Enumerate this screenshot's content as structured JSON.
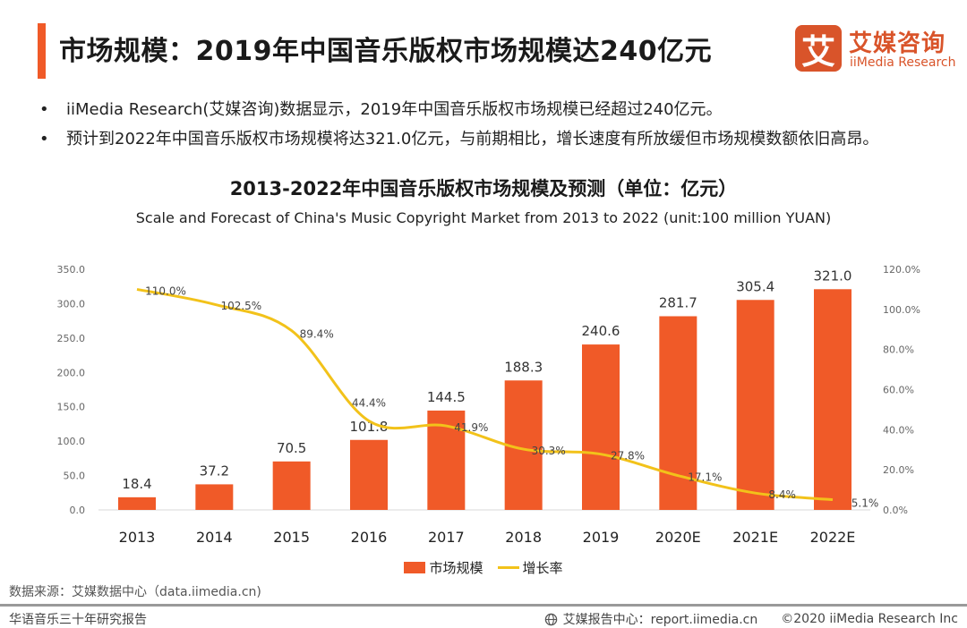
{
  "header": {
    "title": "市场规模：2019年中国音乐版权市场规模达240亿元",
    "logo": {
      "icon_glyph": "艾",
      "name_cn": "艾媒咨询",
      "name_en": "iiMedia Research"
    }
  },
  "bullets": [
    "iiMedia Research(艾媒咨询)数据显示，2019年中国音乐版权市场规模已经超过240亿元。",
    "预计到2022年中国音乐版权市场规模将达321.0亿元，与前期相比，增长速度有所放缓但市场规模数额依旧高昂。"
  ],
  "colors": {
    "accent": "#f05a28",
    "bar": "#f05a28",
    "line": "#f2c21a",
    "brand": "#d9542a"
  },
  "chart_data": {
    "type": "bar",
    "title": "2013-2022年中国音乐版权市场规模及预测（单位：亿元）",
    "subtitle": "Scale and Forecast of China's Music Copyright Market from 2013 to 2022 (unit:100 million YUAN)",
    "categories": [
      "2013",
      "2014",
      "2015",
      "2016",
      "2017",
      "2018",
      "2019",
      "2020E",
      "2021E",
      "2022E"
    ],
    "series": [
      {
        "name": "市场规模",
        "type": "bar",
        "axis": "left",
        "values": [
          18.4,
          37.2,
          70.5,
          101.8,
          144.5,
          188.3,
          240.6,
          281.7,
          305.4,
          321.0
        ],
        "labels": [
          "18.4",
          "37.2",
          "70.5",
          "101.8",
          "144.5",
          "188.3",
          "240.6",
          "281.7",
          "305.4",
          "321.0"
        ]
      },
      {
        "name": "增长率",
        "type": "line",
        "axis": "right",
        "values": [
          110.0,
          102.5,
          89.4,
          44.4,
          41.9,
          30.3,
          27.8,
          17.1,
          8.4,
          5.1
        ],
        "labels": [
          "110.0%",
          "102.5%",
          "89.4%",
          "44.4%",
          "41.9%",
          "30.3%",
          "27.8%",
          "17.1%",
          "8.4%",
          "5.1%"
        ]
      }
    ],
    "y_left": {
      "range": [
        0,
        350
      ],
      "ticks": [
        "0.0",
        "50.0",
        "100.0",
        "150.0",
        "200.0",
        "250.0",
        "300.0",
        "350.0"
      ]
    },
    "y_right": {
      "range": [
        0,
        120
      ],
      "ticks": [
        "0.0%",
        "20.0%",
        "40.0%",
        "60.0%",
        "80.0%",
        "100.0%",
        "120.0%"
      ]
    },
    "grid": false,
    "legend": "bottom-center",
    "xlabel": "",
    "ylabel": ""
  },
  "source": "数据来源：艾媒数据中心（data.iimedia.cn)",
  "footer": {
    "left": "华语音乐三十年研究报告",
    "right_center": "艾媒报告中心：report.iimedia.cn",
    "copyright": "©2020  iiMedia Research  Inc"
  }
}
